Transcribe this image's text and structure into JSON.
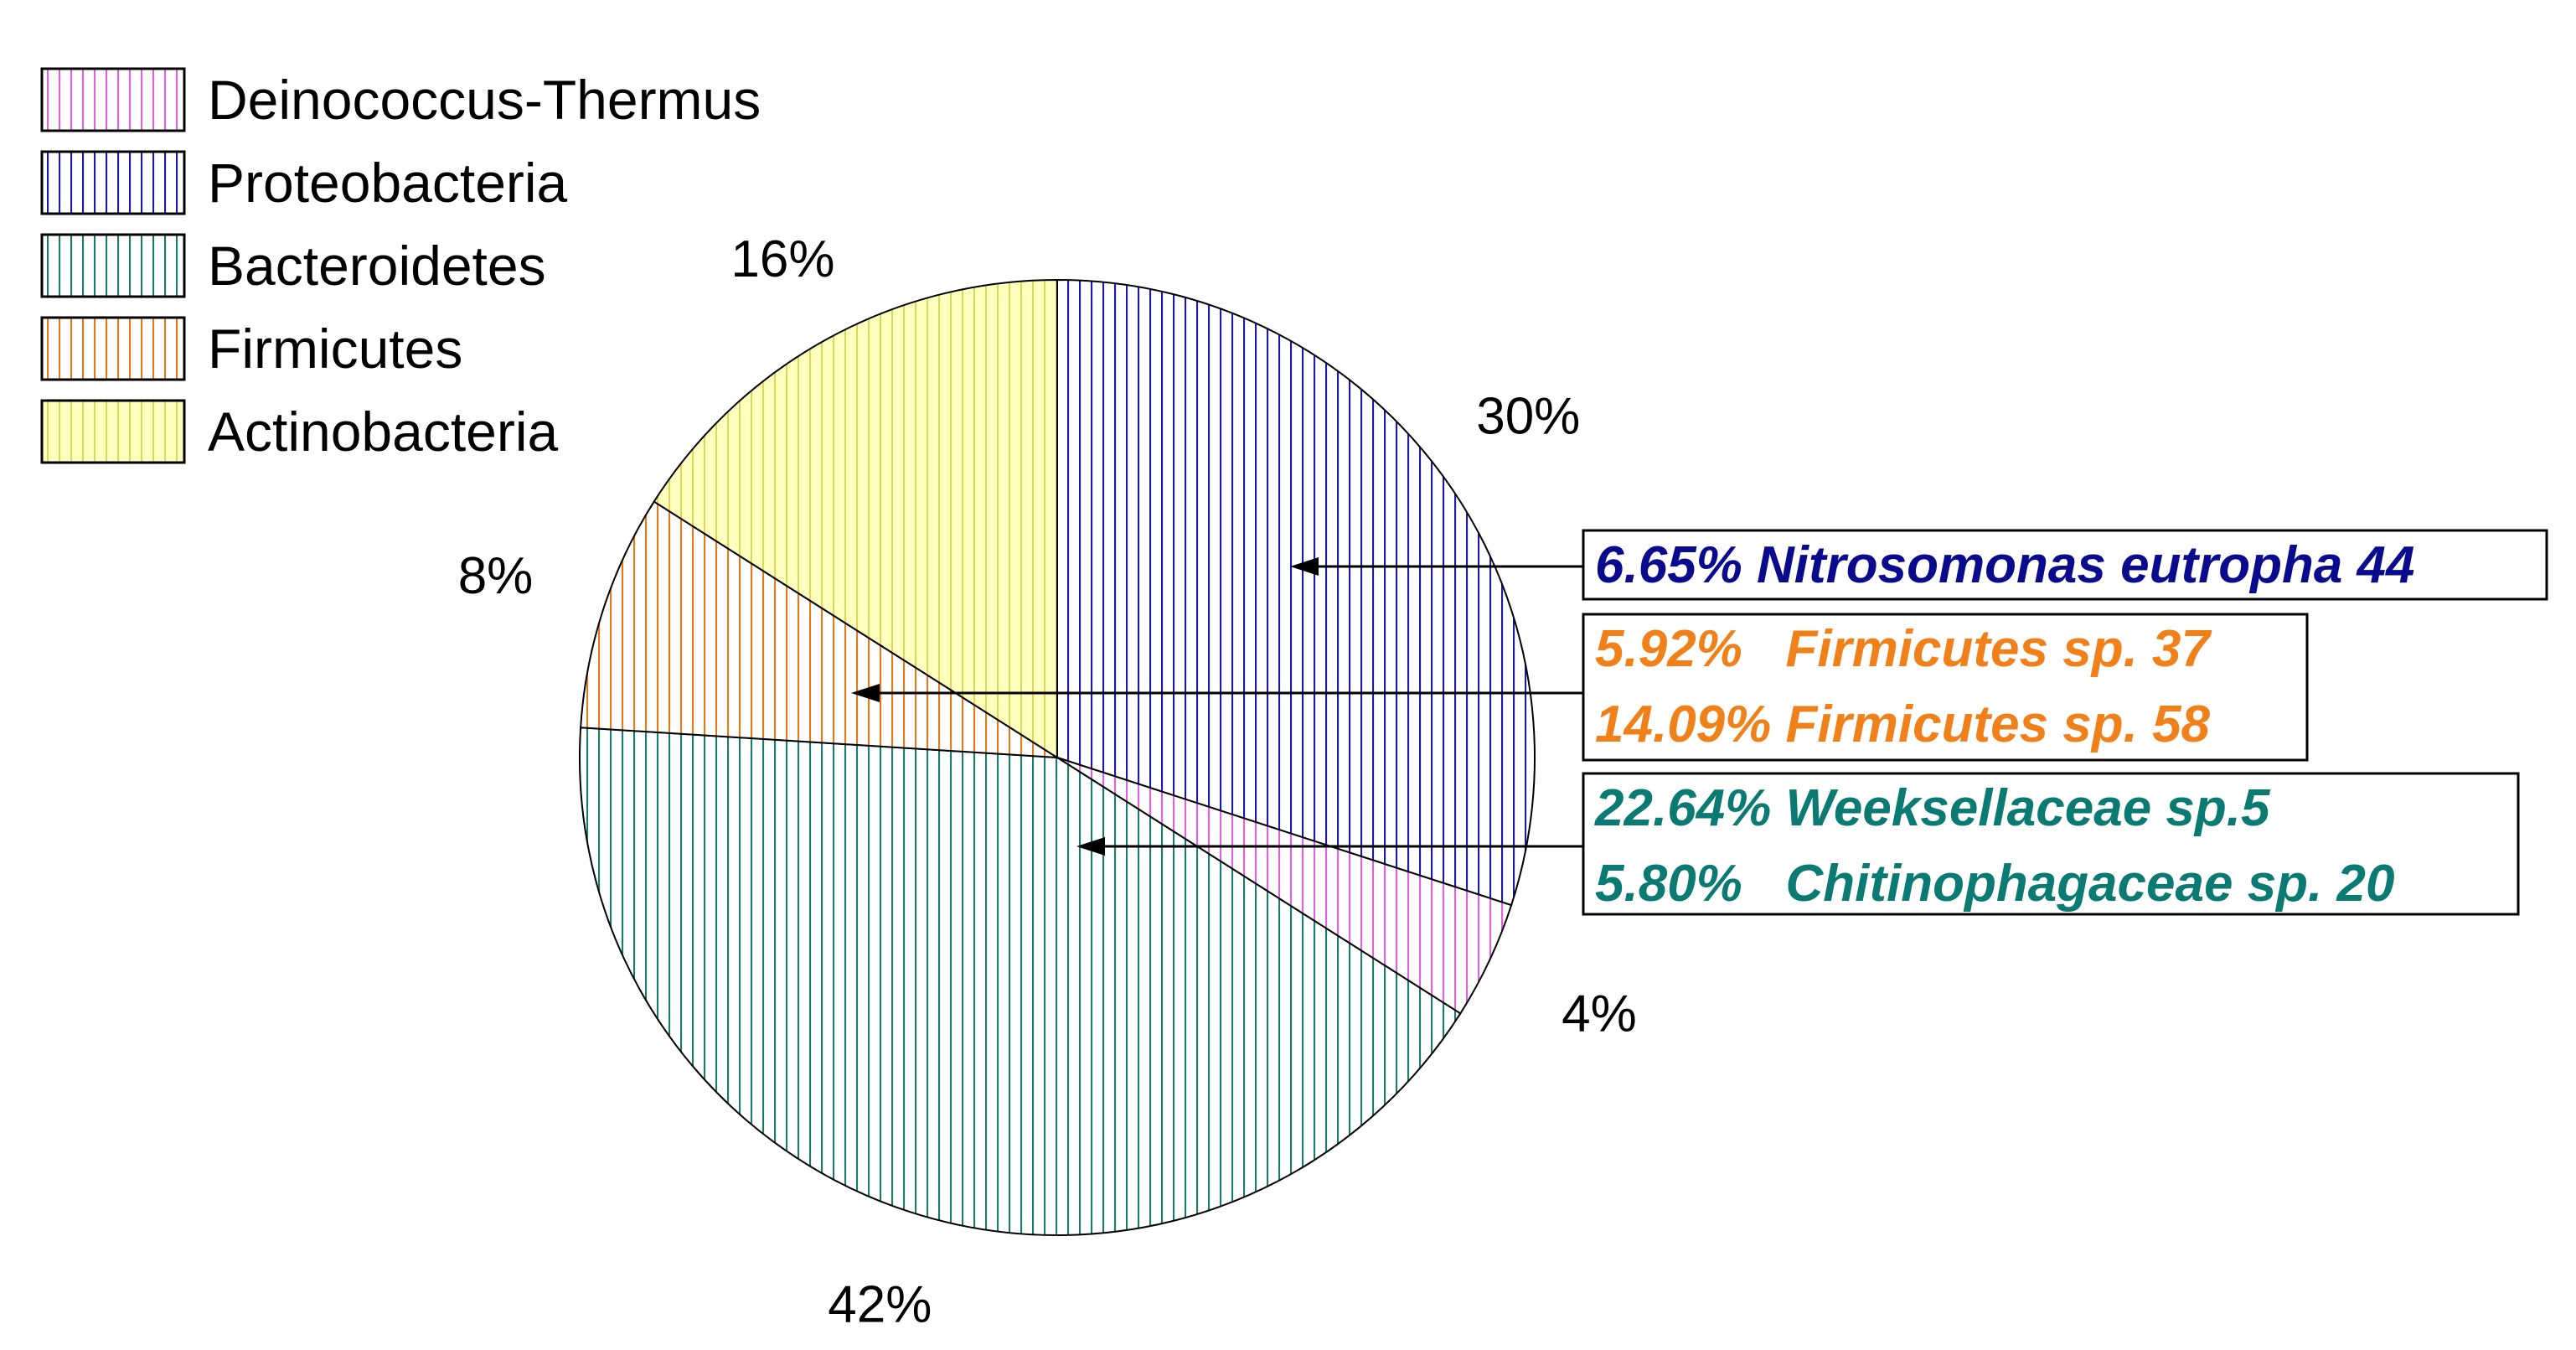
{
  "chart_data": {
    "type": "pie",
    "start_angle_deg": 0,
    "direction": "clockwise",
    "legend_position": "top-left",
    "series": [
      {
        "name": "Proteobacteria",
        "value": 30,
        "label": "30%",
        "color": "#1a1aa6",
        "fill": "#ffffff"
      },
      {
        "name": "Deinococcus-Thermus",
        "value": 4,
        "label": "4%",
        "color": "#e060e0",
        "fill": "#ffffff"
      },
      {
        "name": "Bacteroidetes",
        "value": 42,
        "label": "42%",
        "color": "#1a7a6e",
        "fill": "#ffffff"
      },
      {
        "name": "Firmicutes",
        "value": 8,
        "label": "8%",
        "color": "#e07a1a",
        "fill": "#ffffff"
      },
      {
        "name": "Actinobacteria",
        "value": 16,
        "label": "16%",
        "color": "#d8d860",
        "fill": "#ffffbe"
      }
    ],
    "legend": [
      {
        "name": "Deinococcus-Thermus",
        "color": "#e060e0",
        "fill": "#ffffff"
      },
      {
        "name": "Proteobacteria",
        "color": "#1a1aa6",
        "fill": "#ffffff"
      },
      {
        "name": "Bacteroidetes",
        "color": "#1a7a6e",
        "fill": "#ffffff"
      },
      {
        "name": "Firmicutes",
        "color": "#e07a1a",
        "fill": "#ffffff"
      },
      {
        "name": "Actinobacteria",
        "color": "#d8d860",
        "fill": "#ffffbe"
      }
    ],
    "annotations": [
      {
        "series": "Proteobacteria",
        "color": "#0a0a8c",
        "lines": [
          "6.65% Nitrosomonas eutropha 44"
        ]
      },
      {
        "series": "Firmicutes",
        "color": "#f0801a",
        "lines": [
          "5.92%   Firmicutes sp. 37",
          "14.09% Firmicutes sp. 58"
        ]
      },
      {
        "series": "Bacteroidetes",
        "color": "#0a7a72",
        "lines": [
          "22.64% Weeksellaceae sp.5",
          "5.80%   Chitinophagaceae sp. 20"
        ]
      }
    ]
  }
}
